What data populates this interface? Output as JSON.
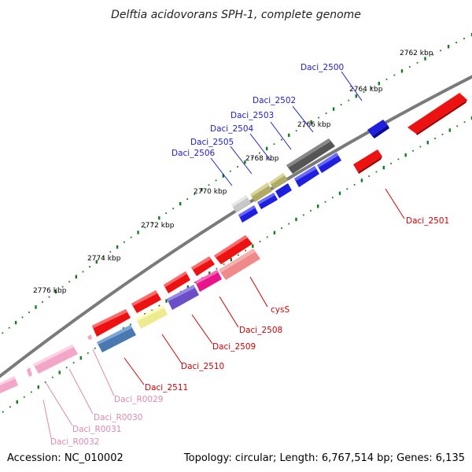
{
  "title": "Delftia acidovorans SPH-1, complete genome",
  "footer": {
    "accession": "Accession: NC_010002",
    "topology": "Topology: circular; Length: 6,767,514 bp; Genes: 6,135"
  },
  "colors": {
    "backbone": "#777777",
    "tick_major": "#11801a",
    "blue_label": "#1d1dcc",
    "red_label": "#d40000",
    "pink_label": "#e088b0"
  },
  "kbp_ticks": [
    "2762 kbp",
    "2764 kbp",
    "2766 kbp",
    "2768 kbp",
    "2770 kbp",
    "2772 kbp",
    "2774 kbp",
    "2776 kbp"
  ],
  "labels": {
    "daci_2500": "Daci_2500",
    "daci_2502": "Daci_2502",
    "daci_2503": "Daci_2503",
    "daci_2504": "Daci_2504",
    "daci_2505": "Daci_2505",
    "daci_2506": "Daci_2506",
    "daci_2501": "Daci_2501",
    "cyss": "cysS",
    "daci_2508": "Daci_2508",
    "daci_2509": "Daci_2509",
    "daci_2510": "Daci_2510",
    "daci_2511": "Daci_2511",
    "daci_r0029": "Daci_R0029",
    "daci_r0030": "Daci_R0030",
    "daci_r0031": "Daci_R0031",
    "daci_r0032": "Daci_R0032"
  }
}
